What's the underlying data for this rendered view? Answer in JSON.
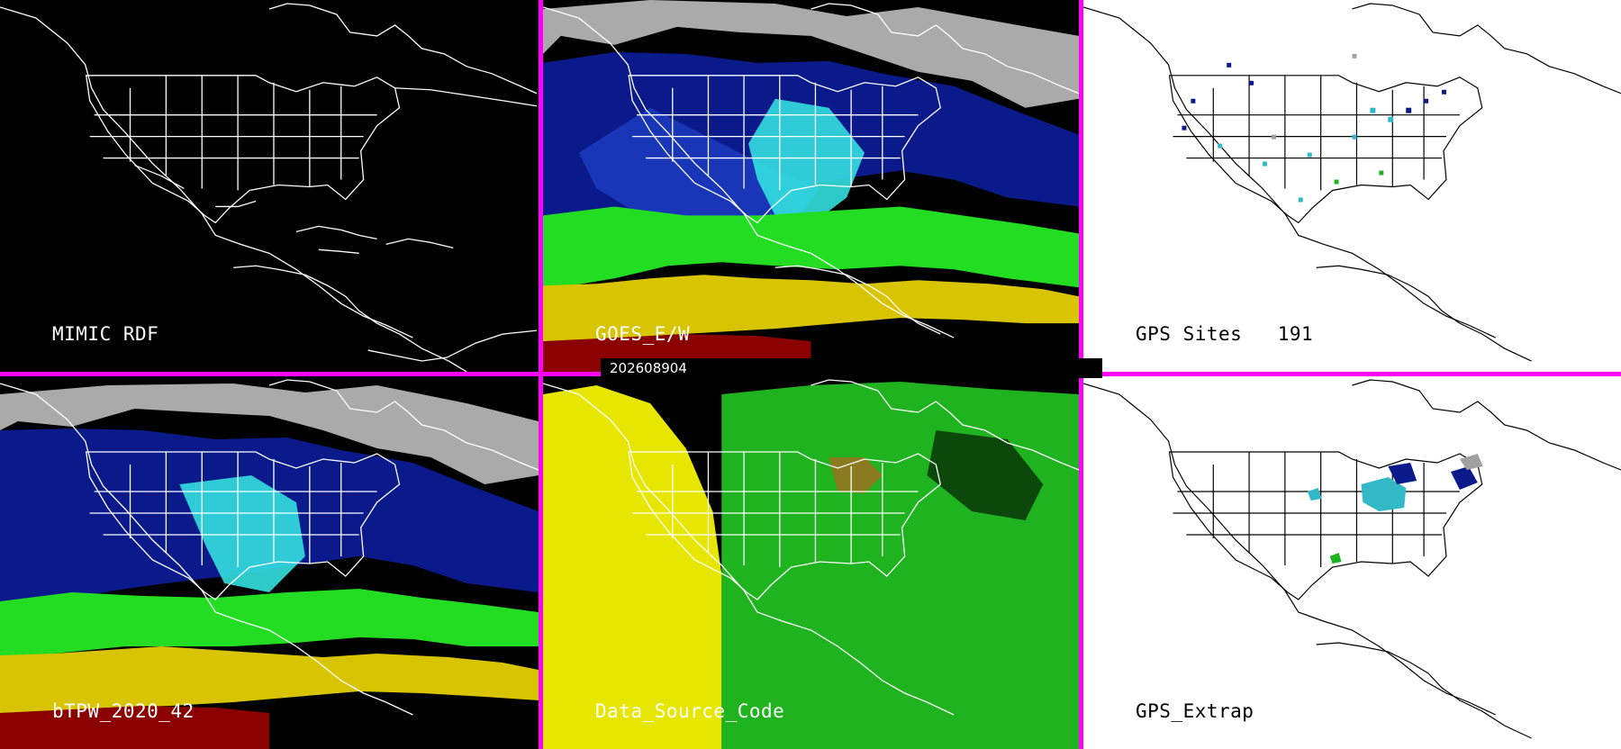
{
  "timestamp": "202608904",
  "panels": [
    {
      "id": "mimic-rdf",
      "label": "MIMIC RDF",
      "theme": "dark"
    },
    {
      "id": "goes-ew",
      "label": "GOES_E/W",
      "theme": "dark"
    },
    {
      "id": "gps-sites",
      "label": "GPS Sites   191",
      "theme": "light"
    },
    {
      "id": "btpw",
      "label": "bTPW_2020_42",
      "theme": "dark"
    },
    {
      "id": "data-source-code",
      "label": "Data_Source_Code",
      "theme": "dark"
    },
    {
      "id": "gps-extrap",
      "label": "GPS_Extrap",
      "theme": "light"
    }
  ],
  "colors": {
    "divider": "#ff00ff",
    "tpw_scale": [
      "#8b0000",
      "#d8c400",
      "#22dd22",
      "#33e0e0",
      "#0a1a8a",
      "#c8c8c8"
    ],
    "source_codes": [
      "#e6e600",
      "#1fb31f",
      "#8a7a20"
    ]
  }
}
